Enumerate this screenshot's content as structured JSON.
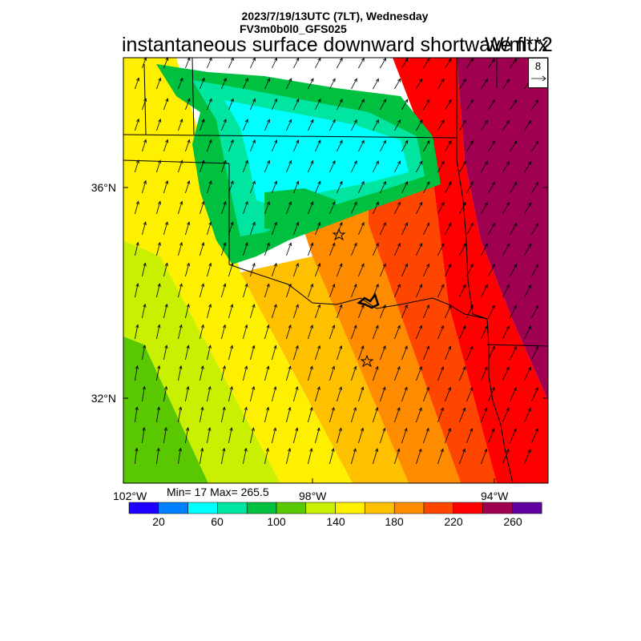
{
  "header": {
    "date_line": "2023/7/19/13UTC (7LT), Wednesday",
    "model_line": "FV3m0b0l0_GFS025",
    "variable": "instantaneous surface downward shortwave flux",
    "units": "W/m**2"
  },
  "stats": {
    "text": "Min= 17 Max= 265.5"
  },
  "axes": {
    "lat_labels": [
      "36°N",
      "32°N"
    ],
    "lon_labels": [
      "102°W",
      "98°W",
      "94°W"
    ]
  },
  "wind_reference": {
    "value": "8"
  },
  "colorbar": {
    "colors": [
      "#1e00ff",
      "#0080ff",
      "#00ffff",
      "#00e6a0",
      "#00c040",
      "#5ac800",
      "#c8f000",
      "#fff000",
      "#ffc000",
      "#ff8c00",
      "#ff4600",
      "#ff0000",
      "#a00050",
      "#6000a0"
    ],
    "labels": [
      "20",
      "60",
      "100",
      "140",
      "180",
      "220",
      "260"
    ]
  },
  "field_colors": {
    "far_west": "#5ac800",
    "west": "#c8f000",
    "central": "#fff000",
    "mid": "#ffc000",
    "east_mid": "#ff8c00",
    "east": "#ff4600",
    "far_east": "#ff0000",
    "northeast": "#a00050",
    "cloud_green": "#00c040",
    "cloud_teal": "#00e6a0",
    "cloud_cyan": "#00ffff"
  }
}
